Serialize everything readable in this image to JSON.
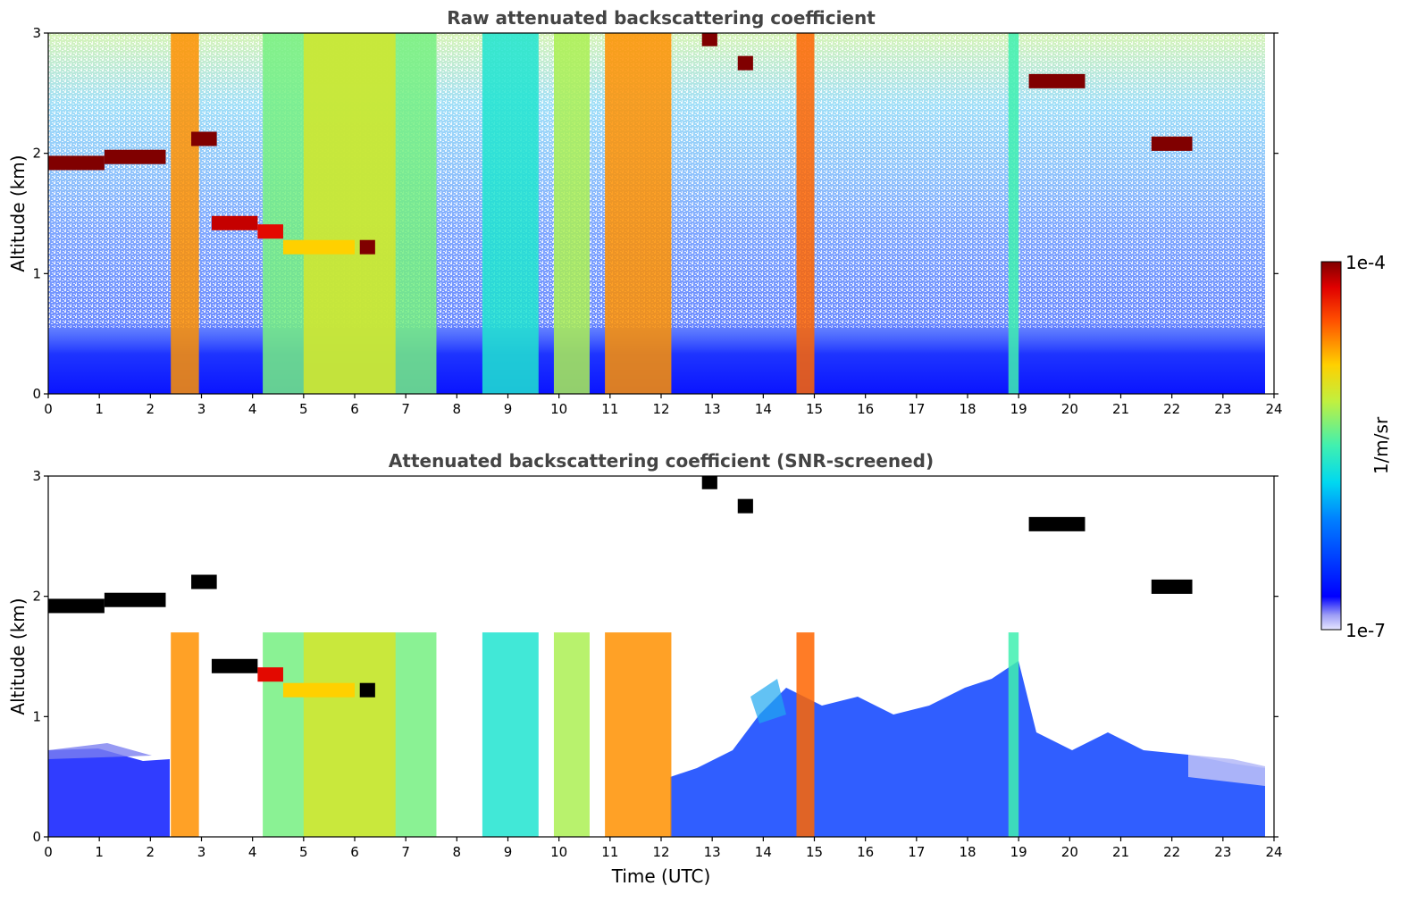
{
  "chart_data": [
    {
      "type": "heatmap",
      "title": "Raw attenuated backscattering coefficient",
      "xlabel": "",
      "ylabel": "Altitude (km)",
      "xlim": [
        0,
        24
      ],
      "ylim": [
        0,
        3
      ],
      "x_ticks": [
        "0",
        "1",
        "2",
        "3",
        "4",
        "5",
        "6",
        "7",
        "8",
        "9",
        "10",
        "11",
        "12",
        "13",
        "14",
        "15",
        "16",
        "17",
        "18",
        "19",
        "20",
        "21",
        "22",
        "23",
        "24"
      ],
      "y_ticks": [
        "0",
        "1",
        "2",
        "3"
      ],
      "cloud_layers": [
        {
          "t_start": 0.0,
          "t_end": 1.1,
          "alt": 1.92,
          "level": 1.0
        },
        {
          "t_start": 1.1,
          "t_end": 2.3,
          "alt": 1.97,
          "level": 1.0
        },
        {
          "t_start": 2.8,
          "t_end": 3.3,
          "alt": 2.12,
          "level": 1.0
        },
        {
          "t_start": 3.2,
          "t_end": 4.1,
          "alt": 1.42,
          "level": 0.95
        },
        {
          "t_start": 4.1,
          "t_end": 4.6,
          "alt": 1.35,
          "level": 0.92
        },
        {
          "t_start": 4.6,
          "t_end": 6.0,
          "alt": 1.22,
          "level": 0.72
        },
        {
          "t_start": 6.1,
          "t_end": 6.4,
          "alt": 1.22,
          "level": 1.0
        },
        {
          "t_start": 12.8,
          "t_end": 13.1,
          "alt": 2.95,
          "level": 1.0
        },
        {
          "t_start": 13.5,
          "t_end": 13.8,
          "alt": 2.75,
          "level": 1.0
        },
        {
          "t_start": 19.2,
          "t_end": 20.3,
          "alt": 2.6,
          "level": 1.0
        },
        {
          "t_start": 21.6,
          "t_end": 22.4,
          "alt": 2.08,
          "level": 1.0
        }
      ],
      "columns": [
        {
          "t_start": 2.4,
          "t_end": 2.95,
          "level": 0.78
        },
        {
          "t_start": 4.2,
          "t_end": 7.6,
          "level": 0.55
        },
        {
          "t_start": 5.0,
          "t_end": 6.8,
          "level": 0.65
        },
        {
          "t_start": 8.5,
          "t_end": 9.6,
          "level": 0.45
        },
        {
          "t_start": 9.9,
          "t_end": 10.6,
          "level": 0.6
        },
        {
          "t_start": 10.9,
          "t_end": 12.2,
          "level": 0.78
        },
        {
          "t_start": 14.65,
          "t_end": 15.0,
          "level": 0.82
        },
        {
          "t_start": 18.8,
          "t_end": 19.0,
          "level": 0.5
        }
      ],
      "boundary_layer_top_km": 0.5
    },
    {
      "type": "heatmap",
      "title": "Attenuated backscattering coefficient (SNR-screened)",
      "xlabel": "Time (UTC)",
      "ylabel": "Altitude (km)",
      "xlim": [
        0,
        24
      ],
      "ylim": [
        0,
        3
      ],
      "x_ticks": [
        "0",
        "1",
        "2",
        "3",
        "4",
        "5",
        "6",
        "7",
        "8",
        "9",
        "10",
        "11",
        "12",
        "13",
        "14",
        "15",
        "16",
        "17",
        "18",
        "19",
        "20",
        "21",
        "22",
        "23",
        "24"
      ],
      "y_ticks": [
        "0",
        "1",
        "2",
        "3"
      ],
      "screened_above_km": 0.7,
      "saturated_color": "#000000"
    }
  ],
  "colorbar": {
    "max_label": "1e-4",
    "min_label": "1e-7",
    "unit_label": "1/m/sr",
    "colormap": "jet",
    "scale": "log"
  }
}
